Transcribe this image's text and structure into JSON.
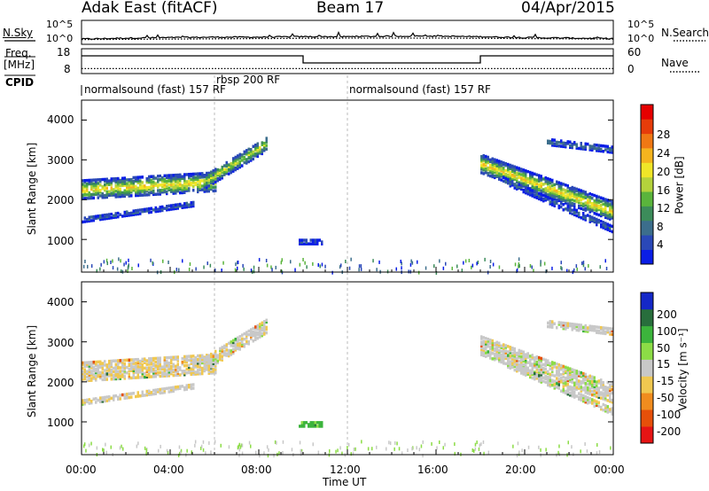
{
  "header": {
    "radar": "Adak East (fitACF)",
    "beam": "Beam 17",
    "date": "04/Apr/2015"
  },
  "top_panels": {
    "nsky_label": "N.Sky",
    "nsearch_label": "N.Search",
    "noise_ticks": [
      "10^5",
      "10^0"
    ],
    "freq_label_line1": "Freq.",
    "freq_label_line2": "[MHz]",
    "freq_ticks": [
      "18",
      "8"
    ],
    "nave_label": "Nave",
    "nave_ticks": [
      "60",
      "0"
    ],
    "cpid_label": "CPID",
    "cpid_segments": [
      {
        "name": "normalsound (fast) 157 RF",
        "start_h": 0,
        "end_h": 6
      },
      {
        "name": "rbsp 200 RF",
        "start_h": 6,
        "end_h": 12
      },
      {
        "name": "normalsound (fast) 157 RF",
        "start_h": 12,
        "end_h": 24
      }
    ]
  },
  "x_axis": {
    "label": "Time UT",
    "ticks": [
      "00:00",
      "04:00",
      "08:00",
      "12:00",
      "16:00",
      "20:00",
      "00:00"
    ]
  },
  "y_axis": {
    "label": "Slant Range [km]",
    "ticks": [
      "1000",
      "2000",
      "3000",
      "4000"
    ]
  },
  "power_colorbar": {
    "label": "Power [dB]",
    "ticks": [
      "4",
      "8",
      "12",
      "16",
      "20",
      "24",
      "28"
    ],
    "colors": [
      "#0a1ee6",
      "#2a48b8",
      "#3c6e8c",
      "#3c8c5a",
      "#5ab43c",
      "#b4d23c",
      "#f0e628",
      "#f5b41e",
      "#f07814",
      "#e63c0a",
      "#e60000"
    ]
  },
  "velocity_colorbar": {
    "label": "Velocity [m s⁻¹]",
    "ticks": [
      "200",
      "100",
      "50",
      "15",
      "-15",
      "-50",
      "-100",
      "-200"
    ],
    "colors": [
      "#1428c8",
      "#286e3c",
      "#3cb43c",
      "#8cdc46",
      "#c8c8c8",
      "#f0c850",
      "#f08c1e",
      "#e6500a",
      "#e61414"
    ]
  },
  "chart_data": [
    {
      "type": "line",
      "title": "N.Sky / N.Search",
      "x_range_h": [
        0,
        24
      ],
      "series": [
        {
          "name": "N.Sky",
          "x_h": [
            0,
            2,
            4,
            6,
            8,
            10,
            12,
            14,
            16,
            18,
            20,
            22,
            24
          ],
          "values_log10": [
            1.1,
            1.3,
            1.4,
            1.5,
            1.5,
            1.6,
            1.6,
            1.7,
            1.7,
            1.6,
            1.4,
            1.3,
            1.2
          ]
        },
        {
          "name": "N.Search",
          "x_h": [
            0,
            4,
            8,
            12,
            16,
            20,
            24
          ],
          "values_log10": [
            1.0,
            1.1,
            1.2,
            1.3,
            1.3,
            1.2,
            1.1
          ]
        }
      ]
    },
    {
      "type": "line",
      "title": "Freq / Nave",
      "x_range_h": [
        0,
        24
      ],
      "series": [
        {
          "name": "Freq.",
          "x_h": [
            0,
            10,
            10,
            18,
            18,
            24
          ],
          "values": [
            16,
            16,
            12,
            12,
            16,
            16
          ]
        },
        {
          "name": "Nave",
          "x_h": [
            0,
            24
          ],
          "values": [
            12,
            12
          ]
        }
      ]
    },
    {
      "type": "heatmap",
      "title": "Power [dB]",
      "x_range_h": [
        0,
        24
      ],
      "y_range_km": [
        180,
        4500
      ],
      "bands": [
        {
          "start_h": 0.0,
          "end_h": 6.0,
          "center_start_km": 2250,
          "center_end_km": 2450,
          "width_km": 450,
          "peak_db": 22
        },
        {
          "start_h": 5.5,
          "end_h": 8.3,
          "center_start_km": 2450,
          "center_end_km": 3400,
          "width_km": 350,
          "peak_db": 18
        },
        {
          "start_h": 0.0,
          "end_h": 5.0,
          "center_start_km": 1500,
          "center_end_km": 1900,
          "width_km": 120,
          "peak_db": 8
        },
        {
          "start_h": 9.8,
          "end_h": 10.8,
          "center_start_km": 950,
          "center_end_km": 950,
          "width_km": 120,
          "peak_db": 6
        },
        {
          "start_h": 18.0,
          "end_h": 24.0,
          "center_start_km": 2900,
          "center_end_km": 1700,
          "width_km": 450,
          "peak_db": 22
        },
        {
          "start_h": 19.0,
          "end_h": 24.0,
          "center_start_km": 2500,
          "center_end_km": 1250,
          "width_km": 160,
          "peak_db": 8
        },
        {
          "start_h": 21.0,
          "end_h": 24.0,
          "center_start_km": 3450,
          "center_end_km": 3250,
          "width_km": 140,
          "peak_db": 10
        }
      ]
    },
    {
      "type": "heatmap",
      "title": "Velocity [m s⁻¹]",
      "x_range_h": [
        0,
        24
      ],
      "y_range_km": [
        180,
        4500
      ],
      "bands": [
        {
          "start_h": 0.0,
          "end_h": 6.0,
          "center_start_km": 2250,
          "center_end_km": 2450,
          "width_km": 450,
          "velocity": -10
        },
        {
          "start_h": 5.5,
          "end_h": 8.3,
          "center_start_km": 2450,
          "center_end_km": 3400,
          "width_km": 350,
          "velocity": 0
        },
        {
          "start_h": 0.0,
          "end_h": 5.0,
          "center_start_km": 1500,
          "center_end_km": 1900,
          "width_km": 120,
          "velocity": -5
        },
        {
          "start_h": 9.8,
          "end_h": 10.8,
          "center_start_km": 950,
          "center_end_km": 950,
          "width_km": 120,
          "velocity": 60
        },
        {
          "start_h": 18.0,
          "end_h": 24.0,
          "center_start_km": 2900,
          "center_end_km": 1700,
          "width_km": 450,
          "velocity": 0
        },
        {
          "start_h": 19.0,
          "end_h": 24.0,
          "center_start_km": 2500,
          "center_end_km": 1250,
          "width_km": 160,
          "velocity": 0
        },
        {
          "start_h": 21.0,
          "end_h": 24.0,
          "center_start_km": 3450,
          "center_end_km": 3250,
          "width_km": 140,
          "velocity": 0
        }
      ]
    }
  ]
}
